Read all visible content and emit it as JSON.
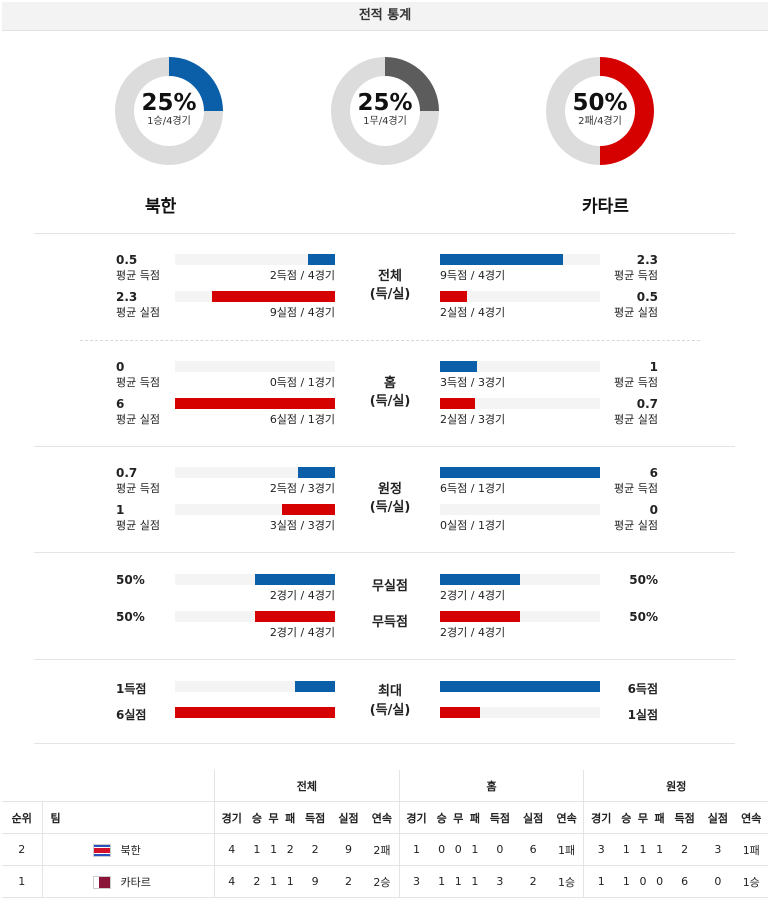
{
  "header": {
    "title": "전적 통계"
  },
  "donuts": [
    {
      "pct": "25%",
      "sub": "1승/4경기",
      "fraction": 0.25,
      "color": "#0b5ea8"
    },
    {
      "pct": "25%",
      "sub": "1무/4경기",
      "fraction": 0.25,
      "color": "#5c5c5c"
    },
    {
      "pct": "50%",
      "sub": "2패/4경기",
      "fraction": 0.5,
      "color": "#d50000"
    }
  ],
  "teams": {
    "left": "북한",
    "right": "카타르"
  },
  "sections": {
    "total": {
      "label1": "전체",
      "label2": "(득/실)",
      "left": [
        {
          "value": "0.5",
          "caption": "평균 득점",
          "detail": "2득점 / 4경기",
          "fraction": 0.17
        },
        {
          "value": "2.3",
          "caption": "평균 실점",
          "detail": "9실점 / 4경기",
          "fraction": 0.77
        }
      ],
      "right": [
        {
          "value": "2.3",
          "caption": "평균 득점",
          "detail": "9득점 / 4경기",
          "fraction": 0.77
        },
        {
          "value": "0.5",
          "caption": "평균 실점",
          "detail": "2실점 / 4경기",
          "fraction": 0.17
        }
      ]
    },
    "home": {
      "label1": "홈",
      "label2": "(득/실)",
      "left": [
        {
          "value": "0",
          "caption": "평균 득점",
          "detail": "0득점 / 1경기",
          "fraction": 0
        },
        {
          "value": "6",
          "caption": "평균 실점",
          "detail": "6실점 / 1경기",
          "fraction": 1
        }
      ],
      "right": [
        {
          "value": "1",
          "caption": "평균 득점",
          "detail": "3득점 / 3경기",
          "fraction": 0.23
        },
        {
          "value": "0.7",
          "caption": "평균 실점",
          "detail": "2실점 / 3경기",
          "fraction": 0.22
        }
      ]
    },
    "away": {
      "label1": "원정",
      "label2": "(득/실)",
      "left": [
        {
          "value": "0.7",
          "caption": "평균 득점",
          "detail": "2득점 / 3경기",
          "fraction": 0.23
        },
        {
          "value": "1",
          "caption": "평균 실점",
          "detail": "3실점 / 3경기",
          "fraction": 0.33
        }
      ],
      "right": [
        {
          "value": "6",
          "caption": "평균 득점",
          "detail": "6득점 / 1경기",
          "fraction": 1
        },
        {
          "value": "0",
          "caption": "평균 실점",
          "detail": "0실점 / 1경기",
          "fraction": 0
        }
      ]
    },
    "clean": {
      "label_clean": "무실점",
      "label_blank": "무득점",
      "left": [
        {
          "value": "50%",
          "detail": "2경기 / 4경기",
          "fraction": 0.5
        },
        {
          "value": "50%",
          "detail": "2경기 / 4경기",
          "fraction": 0.5
        }
      ],
      "right": [
        {
          "value": "50%",
          "detail": "2경기 / 4경기",
          "fraction": 0.5
        },
        {
          "value": "50%",
          "detail": "2경기 / 4경기",
          "fraction": 0.5
        }
      ]
    },
    "max": {
      "label1": "최대",
      "label2": "(득/실)",
      "left": [
        {
          "value": "1득점",
          "fraction": 0.25
        },
        {
          "value": "6실점",
          "fraction": 1
        }
      ],
      "right": [
        {
          "value": "6득점",
          "fraction": 1
        },
        {
          "value": "1실점",
          "fraction": 0.25
        }
      ]
    }
  },
  "standings": {
    "groups": [
      "전체",
      "홈",
      "원정"
    ],
    "rank_header": "순위",
    "team_header": "팀",
    "cols": [
      "경기",
      "승",
      "무",
      "패",
      "득점",
      "실점",
      "연속"
    ],
    "rows": [
      {
        "rank": "2",
        "team": "북한",
        "flag": "north-korea-flag-icon",
        "total": [
          "4",
          "1",
          "1",
          "2",
          "2",
          "9",
          "2패"
        ],
        "home": [
          "1",
          "0",
          "0",
          "1",
          "0",
          "6",
          "1패"
        ],
        "away": [
          "3",
          "1",
          "1",
          "1",
          "2",
          "3",
          "1패"
        ]
      },
      {
        "rank": "1",
        "team": "카타르",
        "flag": "qatar-flag-icon",
        "total": [
          "4",
          "2",
          "1",
          "1",
          "9",
          "2",
          "2승"
        ],
        "home": [
          "3",
          "1",
          "1",
          "1",
          "3",
          "2",
          "1승"
        ],
        "away": [
          "1",
          "1",
          "0",
          "0",
          "6",
          "0",
          "1승"
        ]
      }
    ]
  },
  "colors": {
    "blue": "#0b5ea8",
    "red": "#d50000",
    "track": "#dcdcdc",
    "draw": "#5c5c5c"
  }
}
